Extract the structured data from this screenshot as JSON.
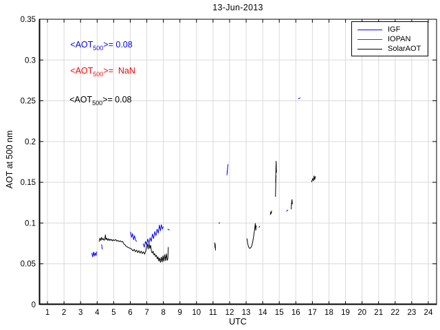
{
  "page": {
    "background": "#ffffff"
  },
  "chart_data": {
    "type": "line",
    "title": "13-Jun-2013",
    "xlabel": "UTC",
    "ylabel": "AOT at 500 nm",
    "xlim": [
      0.5,
      24.5
    ],
    "ylim": [
      0,
      0.35
    ],
    "xticks": [
      "1",
      "2",
      "3",
      "4",
      "5",
      "6",
      "7",
      "8",
      "9",
      "10",
      "11",
      "12",
      "13",
      "14",
      "15",
      "16",
      "17",
      "18",
      "19",
      "20",
      "21",
      "22",
      "23",
      "24"
    ],
    "ytick_values": [
      0,
      0.05,
      0.1,
      0.15,
      0.2,
      0.25,
      0.3,
      0.35
    ],
    "ytick_labels": [
      "0",
      "0.05",
      "0.1",
      "0.15",
      "0.2",
      "0.25",
      "0.3",
      "0.35"
    ],
    "grid": true,
    "grid_color": "#d9d9d9",
    "axis_color": "#000000",
    "legend": {
      "position": "top-right",
      "entries": [
        {
          "label": "IGF",
          "color": "#0000ff"
        },
        {
          "label": "IOPAN",
          "color": "#ff0000"
        },
        {
          "label": "SolarAOT",
          "color": "#000000"
        }
      ]
    },
    "annotations": [
      {
        "pre": "<AOT",
        "sub": "500",
        "post": ">= 0.08",
        "color": "#0000ff",
        "x": 2.38,
        "y": 0.319
      },
      {
        "pre": "<AOT",
        "sub": "500",
        "post": ">=  NaN",
        "color": "#ff0000",
        "x": 2.38,
        "y": 0.287
      },
      {
        "pre": "<AOT",
        "sub": "500",
        "post": ">= 0.08",
        "color": "#000000",
        "x": 2.33,
        "y": 0.251
      }
    ],
    "series": [
      {
        "name": "IGF",
        "color": "#0000ff",
        "segments": [
          [
            [
              3.68,
              0.063
            ],
            [
              3.73,
              0.0585
            ],
            [
              3.78,
              0.0645
            ],
            [
              3.83,
              0.0595
            ],
            [
              3.88,
              0.0635
            ],
            [
              3.93,
              0.06
            ],
            [
              3.97,
              0.0645
            ]
          ],
          [
            [
              4.27,
              0.0735
            ],
            [
              4.31,
              0.068
            ]
          ],
          [
            [
              6.02,
              0.089
            ],
            [
              6.08,
              0.0825
            ],
            [
              6.14,
              0.087
            ],
            [
              6.2,
              0.0795
            ],
            [
              6.26,
              0.0845
            ],
            [
              6.32,
              0.079
            ],
            [
              6.38,
              0.0775
            ]
          ],
          [
            [
              6.78,
              0.0745
            ],
            [
              6.85,
              0.0705
            ],
            [
              6.92,
              0.0775
            ],
            [
              6.99,
              0.0735
            ],
            [
              7.06,
              0.0805
            ],
            [
              7.13,
              0.0755
            ],
            [
              7.2,
              0.082
            ],
            [
              7.27,
              0.0775
            ],
            [
              7.34,
              0.0865
            ],
            [
              7.41,
              0.081
            ],
            [
              7.48,
              0.0895
            ],
            [
              7.55,
              0.0845
            ],
            [
              7.62,
              0.0925
            ],
            [
              7.69,
              0.0875
            ],
            [
              7.76,
              0.0975
            ],
            [
              7.82,
              0.0905
            ],
            [
              7.88,
              0.098
            ],
            [
              7.94,
              0.0925
            ],
            [
              7.99,
              0.0955
            ]
          ],
          [
            [
              8.27,
              0.0925
            ],
            [
              8.36,
              0.0915
            ]
          ],
          [
            [
              11.84,
              0.159
            ],
            [
              11.87,
              0.1645
            ],
            [
              11.85,
              0.1615
            ],
            [
              11.88,
              0.168
            ],
            [
              11.9,
              0.172
            ]
          ],
          [
            [
              15.44,
              0.1145
            ],
            [
              15.52,
              0.116
            ]
          ],
          [
            [
              16.16,
              0.2525
            ],
            [
              16.26,
              0.2535
            ]
          ]
        ]
      },
      {
        "name": "IOPAN",
        "color": "#ff0000",
        "segments": []
      },
      {
        "name": "SolarAOT",
        "color": "#000000",
        "segments": [
          [
            [
              4.12,
              0.0775
            ],
            [
              4.17,
              0.0815
            ],
            [
              4.22,
              0.0785
            ],
            [
              4.27,
              0.0825
            ],
            [
              4.32,
              0.0795
            ],
            [
              4.37,
              0.081
            ],
            [
              4.42,
              0.0788
            ],
            [
              4.47,
              0.0812
            ],
            [
              4.5,
              0.0855
            ],
            [
              4.53,
              0.0795
            ],
            [
              4.58,
              0.0815
            ],
            [
              4.63,
              0.0788
            ],
            [
              4.68,
              0.0808
            ],
            [
              4.73,
              0.0785
            ],
            [
              4.78,
              0.0802
            ],
            [
              4.83,
              0.0788
            ],
            [
              4.88,
              0.0798
            ],
            [
              4.93,
              0.0782
            ],
            [
              4.98,
              0.0795
            ],
            [
              5.05,
              0.0785
            ],
            [
              5.12,
              0.0798
            ],
            [
              5.19,
              0.0778
            ],
            [
              5.26,
              0.0788
            ],
            [
              5.33,
              0.0772
            ],
            [
              5.4,
              0.0782
            ],
            [
              5.47,
              0.0768
            ],
            [
              5.54,
              0.0775
            ],
            [
              5.61,
              0.0745
            ],
            [
              5.68,
              0.0735
            ],
            [
              5.75,
              0.0715
            ],
            [
              5.82,
              0.0708
            ],
            [
              5.89,
              0.0698
            ],
            [
              5.96,
              0.0692
            ],
            [
              6.03,
              0.0688
            ],
            [
              6.1,
              0.0675
            ],
            [
              6.17,
              0.0658
            ],
            [
              6.24,
              0.0678
            ],
            [
              6.31,
              0.0648
            ],
            [
              6.38,
              0.0668
            ],
            [
              6.45,
              0.0638
            ],
            [
              6.52,
              0.0662
            ],
            [
              6.59,
              0.0632
            ],
            [
              6.66,
              0.0655
            ],
            [
              6.73,
              0.0625
            ],
            [
              6.8,
              0.0648
            ],
            [
              6.87,
              0.0618
            ],
            [
              6.93,
              0.0655
            ],
            [
              6.98,
              0.0708
            ],
            [
              7.03,
              0.0742
            ],
            [
              7.08,
              0.0682
            ],
            [
              7.13,
              0.0752
            ],
            [
              7.18,
              0.0688
            ],
            [
              7.23,
              0.0728
            ],
            [
              7.28,
              0.0652
            ],
            [
              7.33,
              0.0632
            ],
            [
              7.38,
              0.0655
            ],
            [
              7.43,
              0.0608
            ],
            [
              7.48,
              0.0625
            ],
            [
              7.53,
              0.0588
            ],
            [
              7.58,
              0.0605
            ],
            [
              7.63,
              0.0558
            ],
            [
              7.68,
              0.0585
            ],
            [
              7.73,
              0.0532
            ],
            [
              7.78,
              0.0572
            ],
            [
              7.83,
              0.0518
            ],
            [
              7.88,
              0.0582
            ],
            [
              7.93,
              0.0522
            ],
            [
              7.98,
              0.0598
            ],
            [
              8.03,
              0.0532
            ],
            [
              8.08,
              0.0612
            ],
            [
              8.13,
              0.0538
            ],
            [
              8.18,
              0.0622
            ],
            [
              8.23,
              0.0542
            ],
            [
              8.27,
              0.0562
            ],
            [
              8.3,
              0.0702
            ]
          ],
          [
            [
              11.1,
              0.0758
            ],
            [
              11.12,
              0.0695
            ],
            [
              11.13,
              0.0742
            ],
            [
              11.15,
              0.0668
            ]
          ],
          [
            [
              11.36,
              0.0995
            ],
            [
              11.39,
              0.1005
            ]
          ],
          [
            [
              13.05,
              0.0808
            ],
            [
              13.1,
              0.0742
            ],
            [
              13.15,
              0.0705
            ],
            [
              13.21,
              0.0688
            ],
            [
              13.27,
              0.0695
            ],
            [
              13.33,
              0.0718
            ],
            [
              13.39,
              0.0758
            ],
            [
              13.44,
              0.0818
            ],
            [
              13.48,
              0.0878
            ],
            [
              13.52,
              0.0938
            ],
            [
              13.55,
              0.0995
            ],
            [
              13.58,
              0.0912
            ],
            [
              13.61,
              0.0968
            ]
          ],
          [
            [
              13.78,
              0.0948
            ],
            [
              13.82,
              0.0958
            ]
          ],
          [
            [
              14.46,
              0.1102
            ],
            [
              14.49,
              0.1138
            ],
            [
              14.51,
              0.1115
            ],
            [
              14.54,
              0.1148
            ]
          ],
          [
            [
              14.77,
              0.1325
            ],
            [
              14.8,
              0.1582
            ],
            [
              14.78,
              0.1495
            ],
            [
              14.81,
              0.1758
            ],
            [
              14.83,
              0.1622
            ]
          ],
          [
            [
              15.72,
              0.1172
            ],
            [
              15.75,
              0.1265
            ],
            [
              15.73,
              0.1212
            ],
            [
              15.77,
              0.1288
            ],
            [
              15.79,
              0.1235
            ]
          ],
          [
            [
              16.95,
              0.1505
            ],
            [
              17.02,
              0.1545
            ],
            [
              17.06,
              0.1518
            ],
            [
              17.1,
              0.1578
            ],
            [
              17.14,
              0.1532
            ],
            [
              17.18,
              0.1572
            ]
          ]
        ]
      }
    ]
  }
}
